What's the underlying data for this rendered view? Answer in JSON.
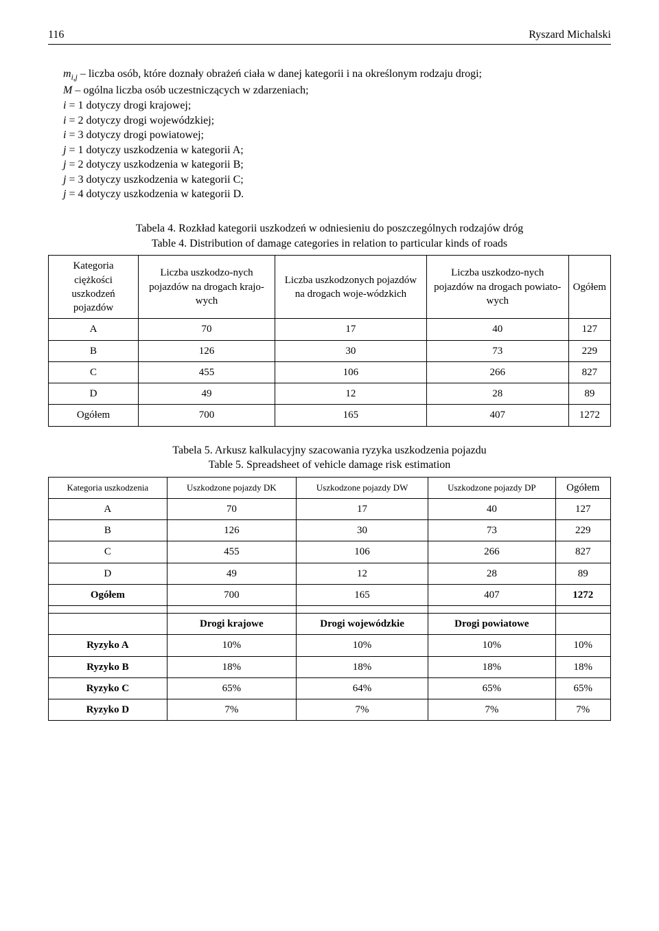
{
  "header": {
    "page_number": "116",
    "author": "Ryszard Michalski"
  },
  "definitions": {
    "m_sub": "i,j",
    "m_desc": " – liczba osób, które doznały obrażeń ciała w danej kategorii i na określonym rodzaju drogi;",
    "M_desc": " – ogólna liczba osób uczestniczących w zdarzeniach;",
    "i1": " = 1 dotyczy  drogi krajowej;",
    "i2": " = 2 dotyczy drogi wojewódzkiej;",
    "i3": " = 3 dotyczy drogi powiatowej;",
    "j1": " = 1 dotyczy uszkodzenia w kategorii A;",
    "j2": " = 2 dotyczy uszkodzenia w kategorii B;",
    "j3": " = 3 dotyczy uszkodzenia w kategorii C;",
    "j4": " = 4 dotyczy uszkodzenia w kategorii D."
  },
  "table4": {
    "caption1": "Tabela 4. Rozkład kategorii uszkodzeń w odniesieniu do poszczególnych rodzajów dróg",
    "caption2": "Table 4. Distribution of damage categories in relation to particular kinds of roads",
    "headers": [
      "Kategoria ciężkości uszkodzeń pojazdów",
      "Liczba uszkodzo-nych pojazdów na drogach krajo-wych",
      "Liczba uszkodzonych pojazdów na drogach woje-wódzkich",
      "Liczba uszkodzo-nych pojazdów na drogach powiato-wych",
      "Ogółem"
    ],
    "rows": [
      [
        "A",
        "70",
        "17",
        "40",
        "127"
      ],
      [
        "B",
        "126",
        "30",
        "73",
        "229"
      ],
      [
        "C",
        "455",
        "106",
        "266",
        "827"
      ],
      [
        "D",
        "49",
        "12",
        "28",
        "89"
      ],
      [
        "Ogółem",
        "700",
        "165",
        "407",
        "1272"
      ]
    ]
  },
  "table5": {
    "caption1": "Tabela 5. Arkusz kalkulacyjny szacowania ryzyka uszkodzenia pojazdu",
    "caption2": "Table 5. Spreadsheet of vehicle damage risk estimation",
    "headers": [
      "Kategoria uszkodzenia",
      "Uszkodzone pojazdy DK",
      "Uszkodzone pojazdy DW",
      "Uszkodzone pojazdy DP",
      "Ogółem"
    ],
    "rows1": [
      [
        "A",
        "70",
        "17",
        "40",
        "127"
      ],
      [
        "B",
        "126",
        "30",
        "73",
        "229"
      ],
      [
        "C",
        "455",
        "106",
        "266",
        "827"
      ],
      [
        "D",
        "49",
        "12",
        "28",
        "89"
      ]
    ],
    "totals": [
      "Ogółem",
      "700",
      "165",
      "407",
      "1272"
    ],
    "subhead": [
      "",
      "Drogi krajowe",
      "Drogi wojewódzkie",
      "Drogi powiatowe",
      ""
    ],
    "risk": [
      [
        "Ryzyko A",
        "10%",
        "10%",
        "10%",
        "10%"
      ],
      [
        "Ryzyko B",
        "18%",
        "18%",
        "18%",
        "18%"
      ],
      [
        "Ryzyko C",
        "65%",
        "64%",
        "65%",
        "65%"
      ],
      [
        "Ryzyko D",
        "7%",
        "7%",
        "7%",
        "7%"
      ]
    ]
  }
}
